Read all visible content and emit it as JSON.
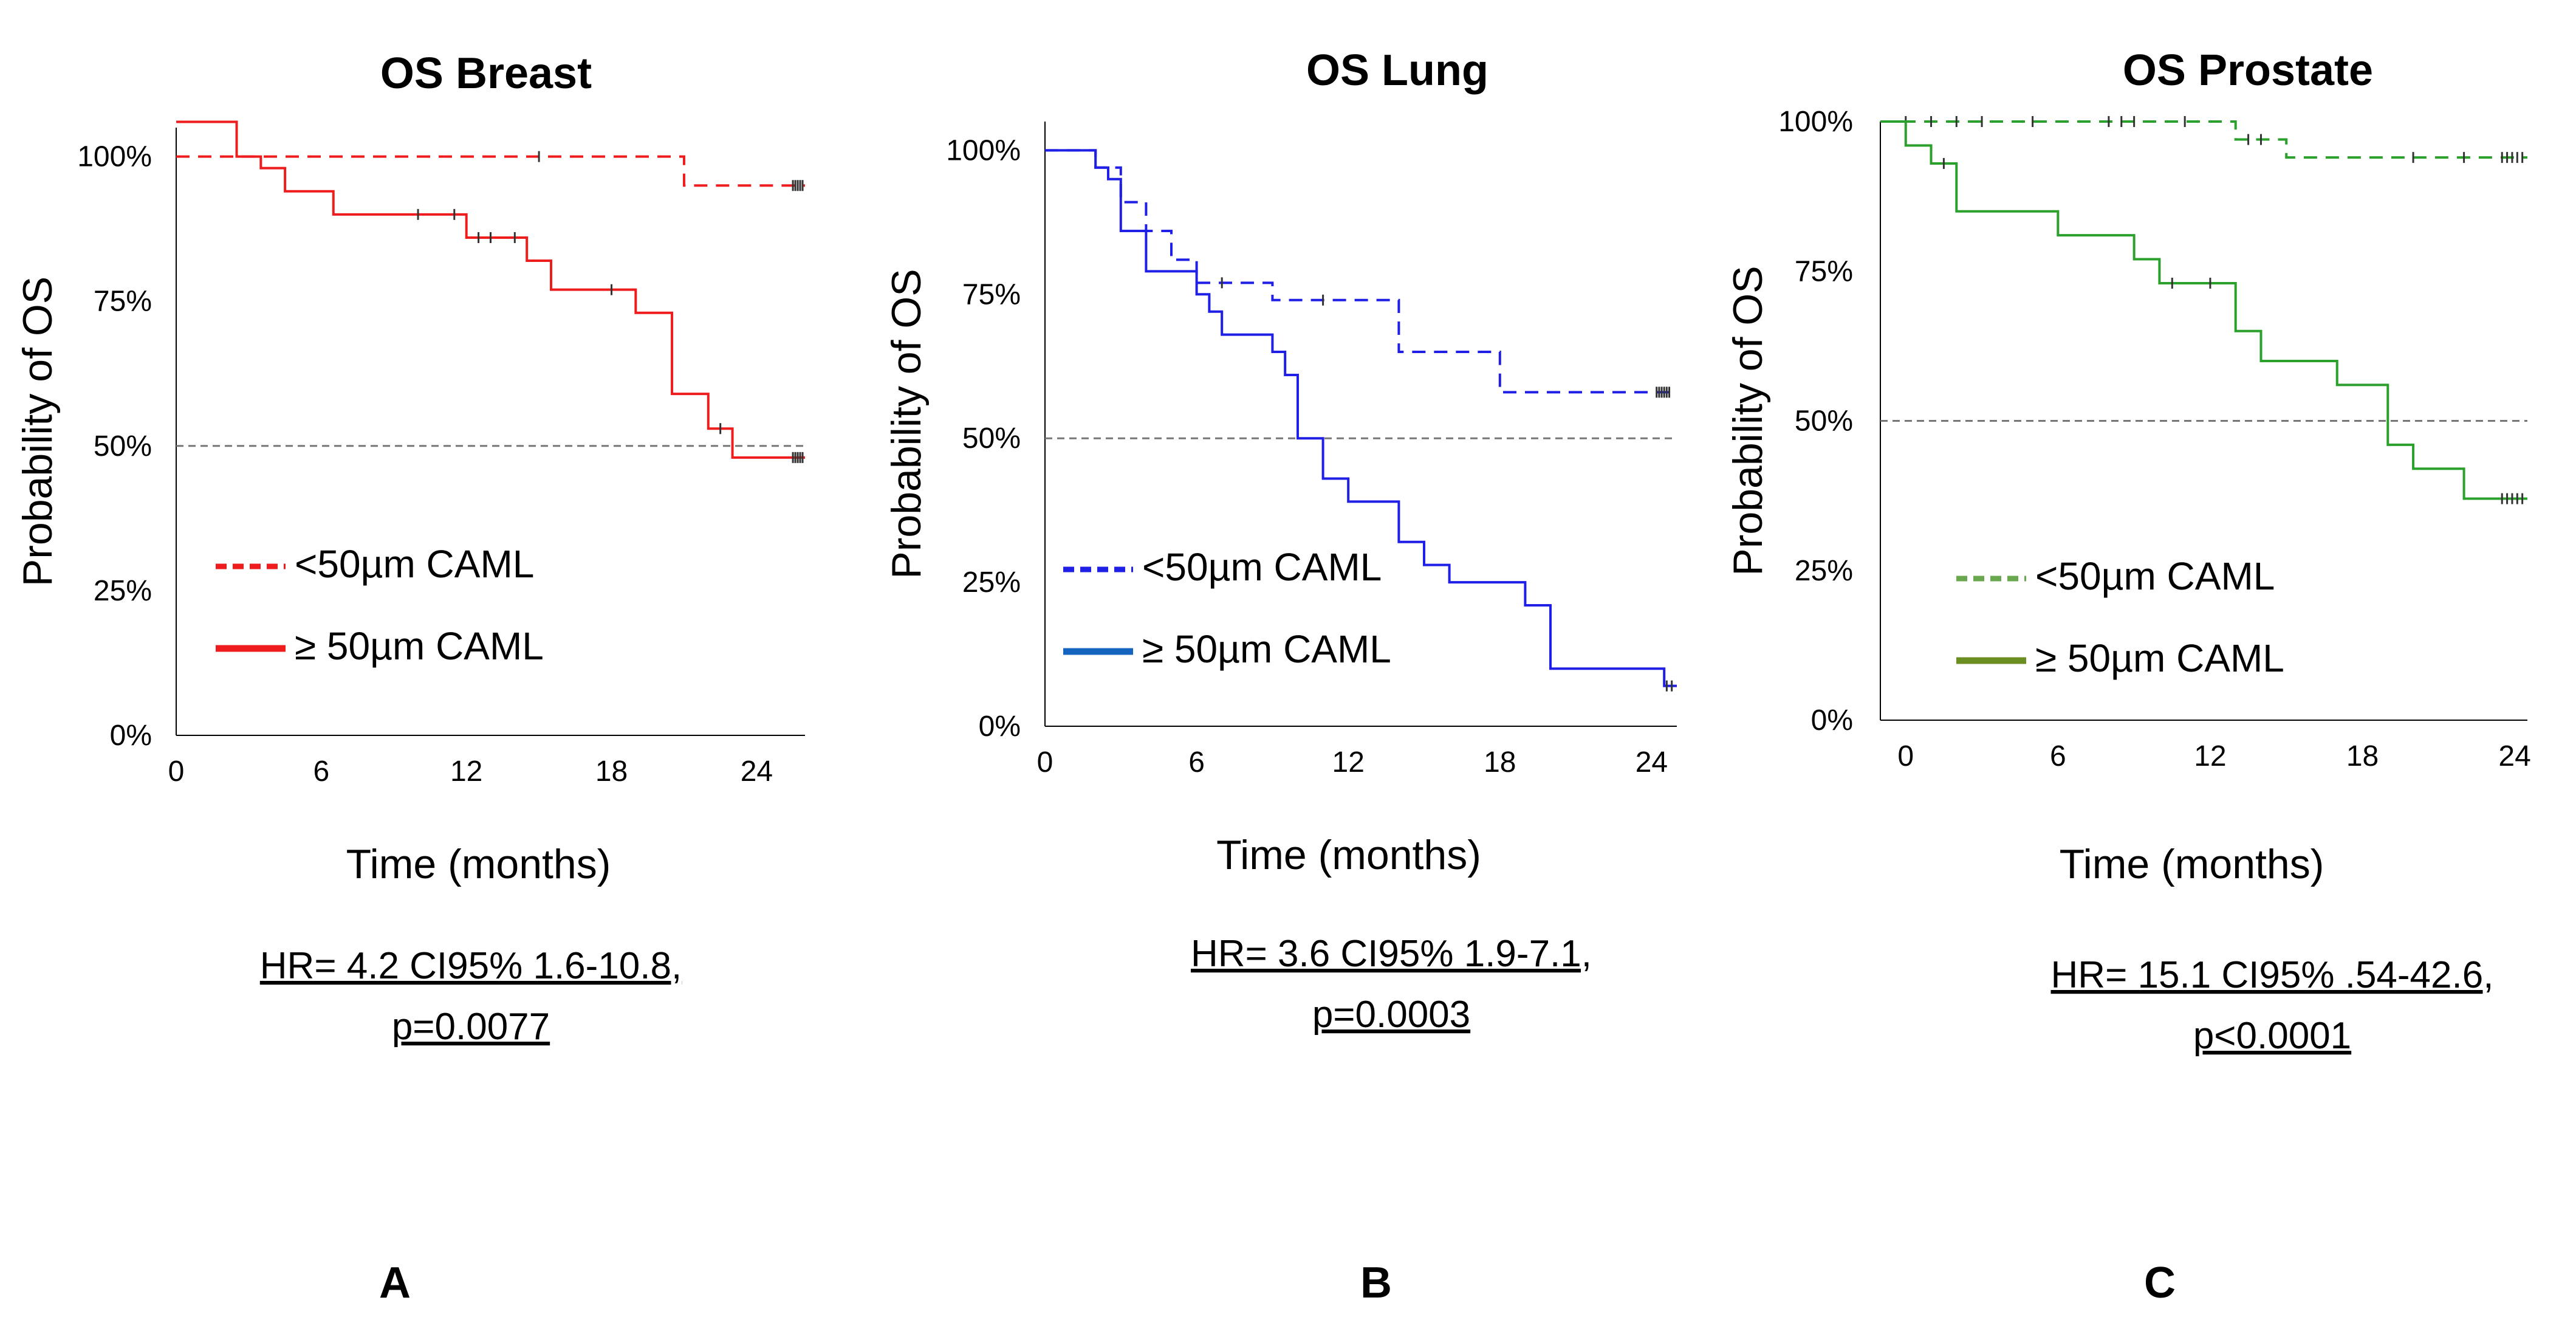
{
  "chart_data": [
    {
      "type": "line",
      "subtype": "kaplan-meier",
      "title": "OS Breast",
      "xlabel": "Time (months)",
      "ylabel": "Probability of OS",
      "xticks": [
        "0",
        "6",
        "12",
        "18",
        "24"
      ],
      "yticks": [
        "0%",
        "25%",
        "50%",
        "75%",
        "100%"
      ],
      "xlim": [
        0,
        26
      ],
      "ylim": [
        0,
        1.05
      ],
      "median_line": 0.5,
      "color": "#ee1c1c",
      "legend": [
        "<50µm CAML",
        "≥ 50µm CAML"
      ],
      "stats": [
        "HR= 4.2 CI95% 1.6-10.8,",
        "p=0.0077"
      ],
      "letter": "A",
      "series": [
        {
          "name": "<50µm CAML",
          "style": "dashed",
          "x": [
            0,
            3,
            21,
            26
          ],
          "y": [
            1.0,
            1.0,
            0.95,
            0.95
          ],
          "censor": [
            15,
            25.5,
            25.6,
            25.7,
            25.8,
            25.9
          ]
        },
        {
          "name": "≥ 50µm CAML",
          "style": "solid",
          "x": [
            0,
            2.5,
            3.5,
            4.5,
            6.5,
            12,
            14.5,
            15.5,
            19,
            20.5,
            22,
            23,
            26
          ],
          "y": [
            1.06,
            1.0,
            0.98,
            0.94,
            0.9,
            0.86,
            0.82,
            0.77,
            0.73,
            0.59,
            0.53,
            0.48,
            0.48
          ],
          "censor": [
            10,
            11.5,
            12.5,
            13,
            14,
            18,
            22.5,
            25.5,
            25.6,
            25.7,
            25.8,
            25.9
          ]
        }
      ]
    },
    {
      "type": "line",
      "subtype": "kaplan-meier",
      "title": "OS Lung",
      "xlabel": "Time (months)",
      "ylabel": "Probability of OS",
      "xticks": [
        "0",
        "6",
        "12",
        "18",
        "24"
      ],
      "yticks": [
        "0%",
        "25%",
        "50%",
        "75%",
        "100%"
      ],
      "xlim": [
        0,
        25
      ],
      "ylim": [
        0,
        1.05
      ],
      "median_line": 0.5,
      "color": "#1f1fe6",
      "legend_line_colors": [
        "#1f1fe6",
        "#1565c0"
      ],
      "legend": [
        "<50µm CAML",
        "≥ 50µm CAML"
      ],
      "stats": [
        "HR= 3.6 CI95% 1.9-7.1,",
        "p=0.0003"
      ],
      "letter": "B",
      "series": [
        {
          "name": "<50µm CAML",
          "style": "dashed",
          "x": [
            0,
            2,
            3,
            4,
            5,
            6,
            9,
            14,
            18,
            25
          ],
          "y": [
            1.0,
            0.97,
            0.91,
            0.86,
            0.81,
            0.77,
            0.74,
            0.65,
            0.58,
            0.58
          ],
          "censor": [
            7,
            11,
            24.2,
            24.3,
            24.4,
            24.5,
            24.6,
            24.7
          ]
        },
        {
          "name": "≥ 50µm CAML",
          "style": "solid",
          "x": [
            0,
            2,
            2.5,
            3,
            4,
            6,
            6.5,
            7,
            9,
            9.5,
            10,
            11,
            12,
            14,
            15,
            16,
            19,
            20,
            24.5,
            25
          ],
          "y": [
            1.0,
            0.97,
            0.95,
            0.86,
            0.79,
            0.75,
            0.72,
            0.68,
            0.65,
            0.61,
            0.5,
            0.43,
            0.39,
            0.32,
            0.28,
            0.25,
            0.21,
            0.1,
            0.07,
            0.07
          ],
          "censor": [
            24.6,
            24.8
          ]
        }
      ]
    },
    {
      "type": "line",
      "subtype": "kaplan-meier",
      "title": "OS Prostate",
      "xlabel": "Time (months)",
      "ylabel": "Probability of OS",
      "xticks": [
        "0",
        "6",
        "12",
        "18",
        "24"
      ],
      "yticks": [
        "0%",
        "25%",
        "50%",
        "75%",
        "100%"
      ],
      "xlim": [
        -1,
        24.5
      ],
      "ylim": [
        0,
        1.0
      ],
      "median_line": 0.5,
      "color": "#2ca02c",
      "legend_line_colors": [
        "#6aa84f",
        "#6b8e23"
      ],
      "legend": [
        "<50µm CAML",
        "≥ 50µm CAML"
      ],
      "stats": [
        "HR= 15.1 CI95% .54-42.6,",
        "p<0.0001"
      ],
      "letter": "C",
      "series": [
        {
          "name": "<50µm CAML",
          "style": "dashed",
          "x": [
            -1,
            13,
            15,
            24.5
          ],
          "y": [
            1.0,
            0.97,
            0.94,
            0.94
          ],
          "censor": [
            0,
            1,
            2,
            3,
            5,
            8,
            8.5,
            9,
            11,
            13.5,
            14,
            20,
            22,
            23.5,
            23.7,
            23.9,
            24.1,
            24.3
          ]
        },
        {
          "name": "≥ 50µm CAML",
          "style": "solid",
          "x": [
            -1,
            0,
            1,
            2,
            6,
            9,
            10,
            13,
            14,
            17,
            19,
            20,
            22,
            24.5
          ],
          "y": [
            1.0,
            0.96,
            0.93,
            0.85,
            0.81,
            0.77,
            0.73,
            0.65,
            0.6,
            0.56,
            0.46,
            0.42,
            0.37,
            0.37
          ],
          "censor": [
            1.5,
            10.5,
            12,
            23.5,
            23.7,
            23.9,
            24.1,
            24.3
          ]
        }
      ]
    }
  ]
}
